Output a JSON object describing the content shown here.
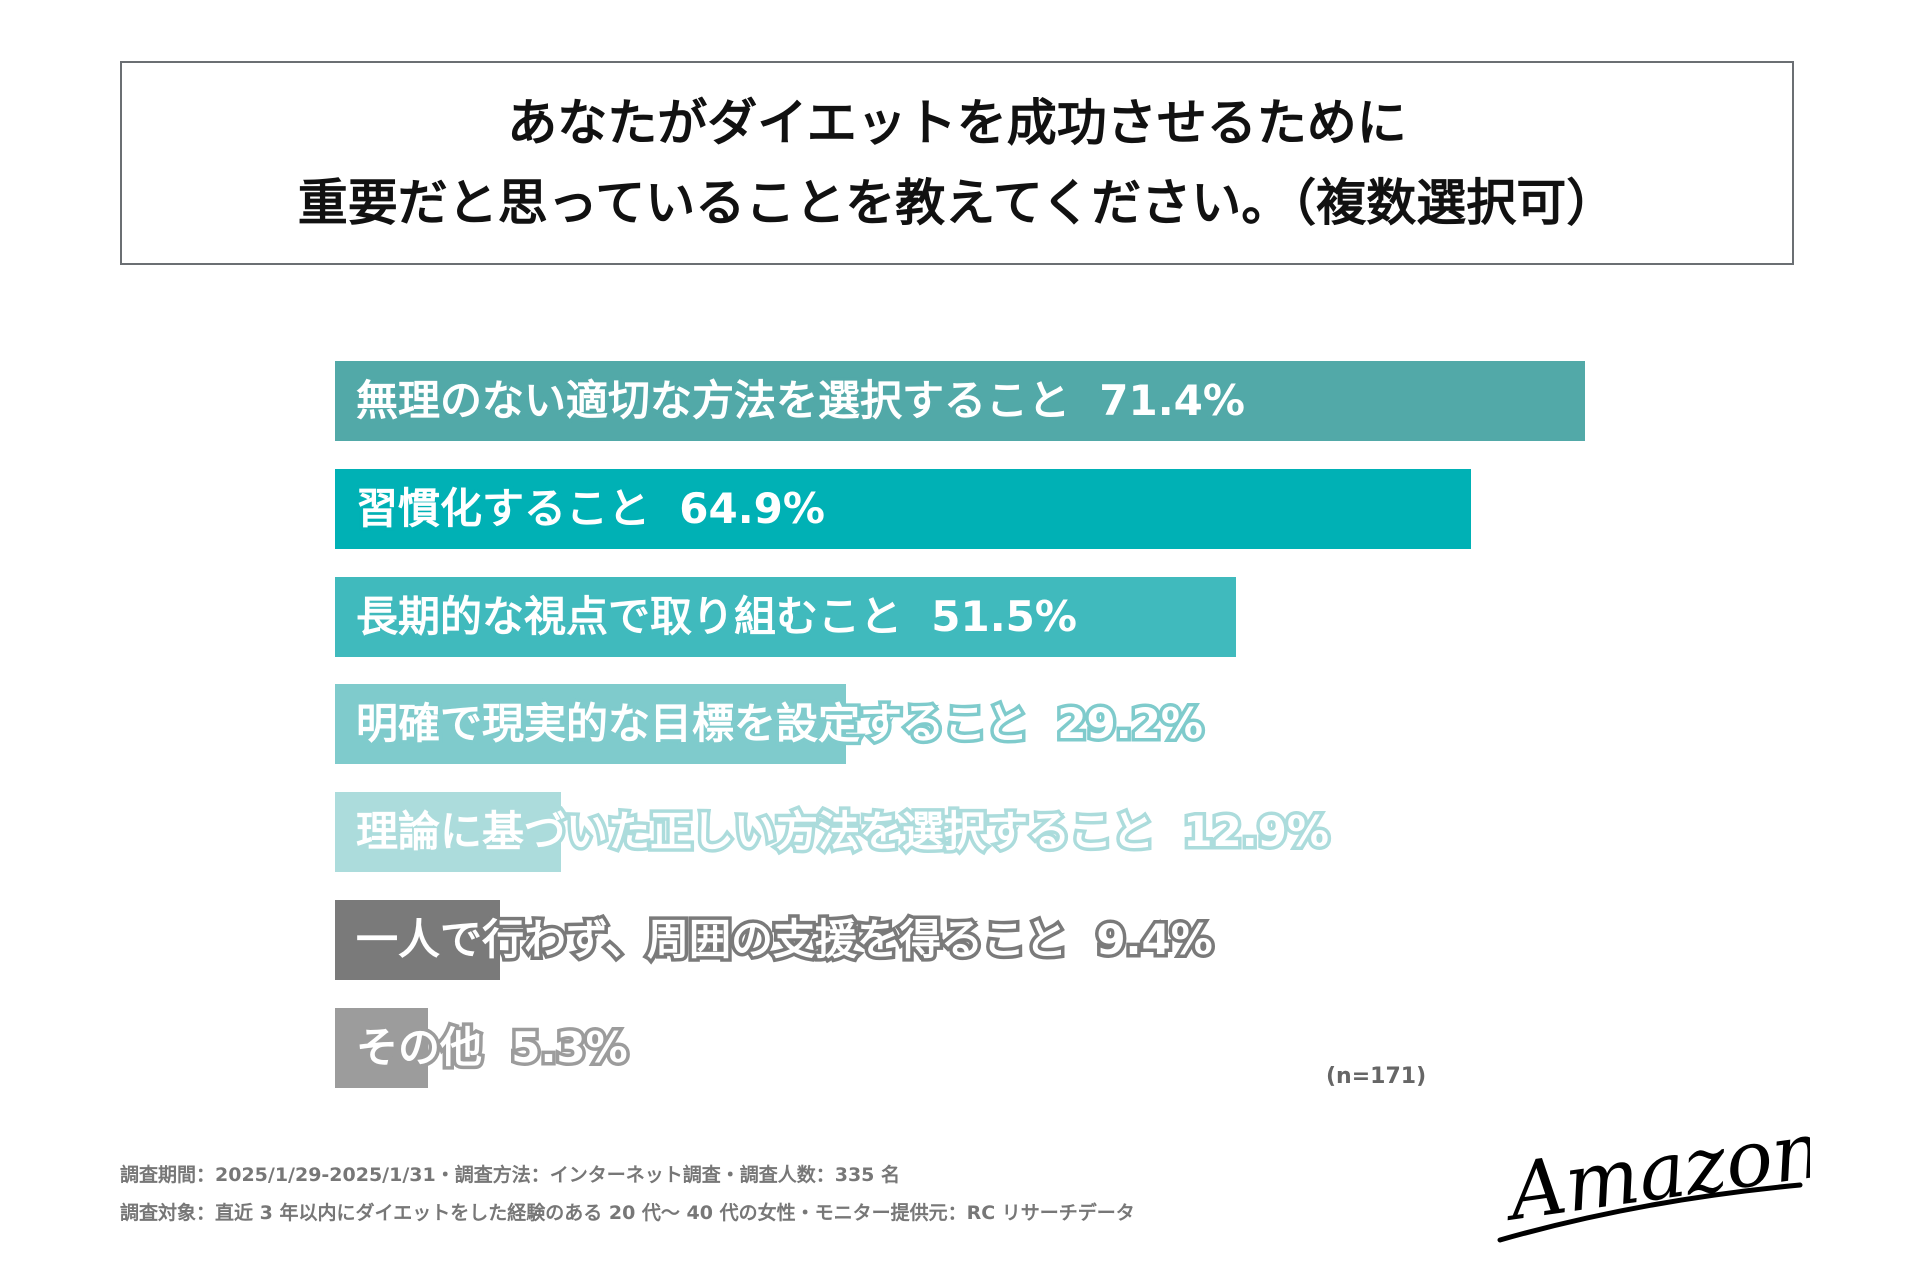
{
  "title": {
    "line1": "あなたがダイエットを成功させるために",
    "line2": "重要だと思っていることを教えてください。（複数選択可）"
  },
  "chart_data": {
    "type": "bar",
    "orientation": "horizontal",
    "title": "あなたがダイエットを成功させるために重要だと思っていることを教えてください。（複数選択可）",
    "categories": [
      "無理のない適切な方法を選択すること",
      "習慣化すること",
      "長期的な視点で取り組むこと",
      "明確で現実的な目標を設定すること",
      "理論に基づいた正しい方法を選択すること",
      "一人で行わず、周囲の支援を得ること",
      "その他"
    ],
    "values": [
      71.4,
      64.9,
      51.5,
      29.2,
      12.9,
      9.4,
      5.3
    ],
    "value_labels": [
      "71.4%",
      "64.9%",
      "51.5%",
      "29.2%",
      "12.9%",
      "9.4%",
      "5.3%"
    ],
    "colors": [
      "#52a9a8",
      "#00b1b5",
      "#40babd",
      "#7fcbcc",
      "#acdcdc",
      "#7a7a7a",
      "#9c9c9c"
    ],
    "unit": "%",
    "grid": false,
    "sample_size": "(n=171)"
  },
  "footer": {
    "line1": "調査期間：2025/1/29-2025/1/31・調査方法：インターネット調査・調査人数：335 名",
    "line2": "調査対象：直近 3 年以内にダイエットをした経験のある 20 代～ 40 代の女性・モニター提供元：RC リサーチデータ"
  },
  "logo": {
    "text": "Amazones"
  }
}
